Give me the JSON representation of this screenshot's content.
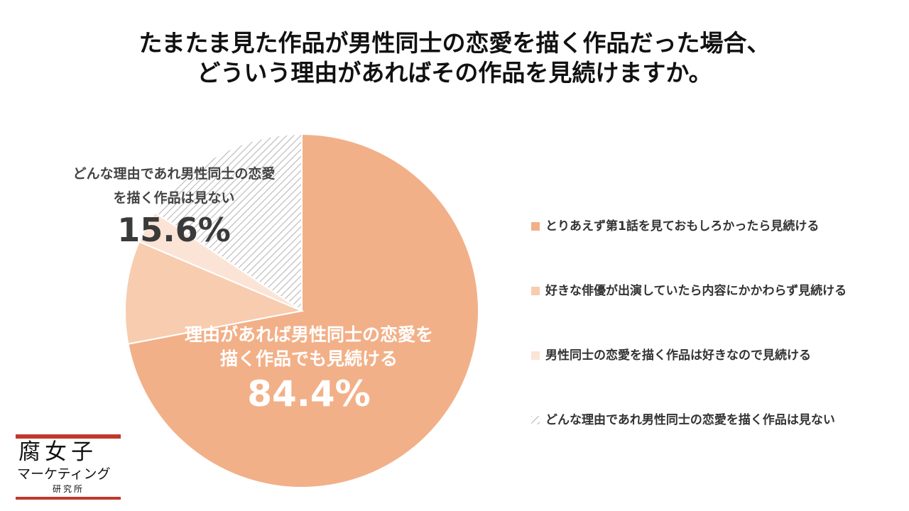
{
  "title": {
    "line1": "たまたま見た作品が男性同士の恋愛を描く作品だった場合、",
    "line2": "どういう理由があればその作品を見続けますか。"
  },
  "chart_data": {
    "type": "pie",
    "slices": [
      {
        "label": "とりあえず第1話を見ておもしろかったら見続ける",
        "value": 72.0,
        "color": "#f2b088",
        "pattern": "solid"
      },
      {
        "label": "好きな俳優が出演していたら内容にかかわらず見続ける",
        "value": 9.4,
        "color": "#f7ccaf",
        "pattern": "solid"
      },
      {
        "label": "男性同士の恋愛を描く作品は好きなので見続ける",
        "value": 3.0,
        "color": "#fbe4d6",
        "pattern": "solid"
      },
      {
        "label": "どんな理由であれ男性同士の恋愛を描く作品は見ない",
        "value": 15.6,
        "color": "#c8c8c8",
        "pattern": "hatch"
      }
    ],
    "start": "top",
    "direction": "clockwise",
    "groups": [
      {
        "text_line1": "理由があれば男性同士の恋愛を",
        "text_line2": "描く作品でも見続ける",
        "value_text": "84.4%"
      },
      {
        "text_line1": "どんな理由であれ男性同士の恋愛",
        "text_line2": "を描く作品は見ない",
        "value_text": "15.6%"
      }
    ],
    "legend_position": "right"
  },
  "logo": {
    "main": "腐女子",
    "sub": "マーケティング",
    "small": "研究所"
  }
}
